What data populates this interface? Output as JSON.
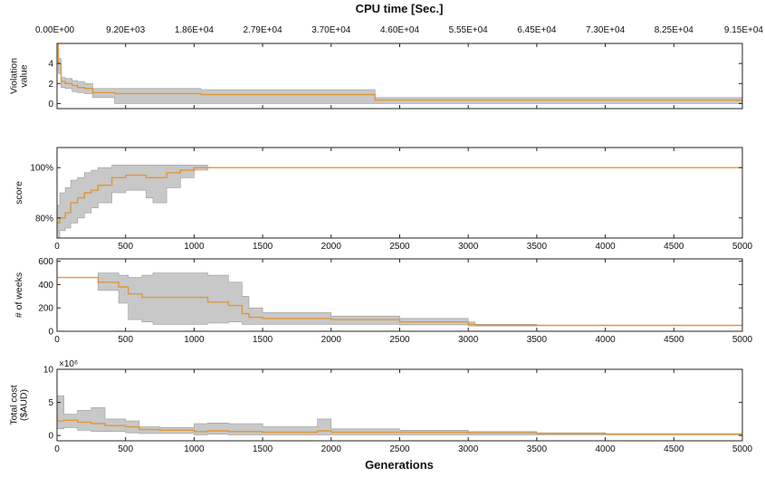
{
  "figure": {
    "top_axis_title": "CPU time [Sec.]",
    "bottom_axis_title": "Generations",
    "top_ticks": [
      "0.00E+00",
      "9.20E+03",
      "1.86E+04",
      "2.79E+04",
      "3.70E+04",
      "4.60E+04",
      "5.55E+04",
      "6.45E+04",
      "7.30E+04",
      "8.25E+04",
      "9.15E+04"
    ],
    "x_ticks": [
      "0",
      "500",
      "1000",
      "1500",
      "2000",
      "2500",
      "3000",
      "3500",
      "4000",
      "4500",
      "5000"
    ],
    "colors": {
      "line": "#e0963a",
      "band": "#c8c8c8",
      "band_edge": "#9a9a9a",
      "axis": "#222222"
    }
  },
  "chart_data": [
    {
      "type": "line",
      "ylabel": "Violation value",
      "ylabel_lines": [
        "Violation",
        "value"
      ],
      "xlim": [
        0,
        5000
      ],
      "ylim": [
        -0.5,
        6
      ],
      "yticks": [
        0,
        2,
        4
      ],
      "ytick_labels": [
        "0",
        "2",
        "4"
      ],
      "exponent_label": "",
      "x": [
        0,
        10,
        30,
        60,
        110,
        150,
        200,
        260,
        420,
        700,
        1050,
        1500,
        2000,
        2310,
        2320,
        3000,
        4000,
        5000
      ],
      "mean": [
        6.0,
        4.0,
        2.2,
        2.0,
        1.8,
        1.6,
        1.5,
        1.1,
        1.0,
        1.0,
        0.9,
        0.9,
        0.9,
        0.9,
        0.35,
        0.35,
        0.35,
        0.3
      ],
      "band_upper": [
        6.0,
        4.5,
        2.6,
        2.5,
        2.3,
        2.2,
        2.0,
        1.5,
        1.5,
        1.5,
        1.4,
        1.4,
        1.4,
        1.4,
        0.6,
        0.6,
        0.6,
        0.6
      ],
      "band_lower": [
        6.0,
        3.0,
        1.6,
        1.5,
        1.2,
        1.1,
        1.0,
        0.6,
        0.0,
        0.0,
        0.0,
        0.0,
        0.0,
        0.0,
        0.0,
        0.0,
        0.0,
        0.0
      ]
    },
    {
      "type": "line",
      "ylabel": "score",
      "ylabel_lines": [
        "score"
      ],
      "xlim": [
        0,
        5000
      ],
      "ylim": [
        0.72,
        1.08
      ],
      "yticks": [
        0.8,
        1.0
      ],
      "ytick_labels": [
        "80%",
        "100%"
      ],
      "exponent_label": "",
      "x": [
        0,
        20,
        60,
        100,
        150,
        200,
        250,
        300,
        400,
        500,
        620,
        650,
        700,
        800,
        900,
        1000,
        1100,
        2000,
        3000,
        4000,
        5000
      ],
      "mean": [
        0.78,
        0.8,
        0.82,
        0.86,
        0.88,
        0.9,
        0.91,
        0.93,
        0.96,
        0.97,
        0.97,
        0.96,
        0.96,
        0.98,
        0.99,
        1.0,
        1.0,
        1.0,
        1.0,
        1.0,
        1.0
      ],
      "band_upper": [
        0.85,
        0.9,
        0.92,
        0.95,
        0.96,
        0.98,
        0.99,
        1.0,
        1.01,
        1.01,
        1.01,
        1.01,
        1.01,
        1.01,
        1.01,
        1.01,
        1.0,
        1.0,
        1.0,
        1.0,
        1.0
      ],
      "band_lower": [
        0.72,
        0.75,
        0.76,
        0.78,
        0.8,
        0.82,
        0.84,
        0.86,
        0.9,
        0.91,
        0.91,
        0.88,
        0.86,
        0.92,
        0.96,
        0.99,
        1.0,
        1.0,
        1.0,
        1.0,
        1.0
      ]
    },
    {
      "type": "line",
      "ylabel": "# of weeks",
      "ylabel_lines": [
        "# of weeks"
      ],
      "xlim": [
        0,
        5000
      ],
      "ylim": [
        0,
        620
      ],
      "yticks": [
        0,
        200,
        400,
        600
      ],
      "ytick_labels": [
        "0",
        "200",
        "400",
        "600"
      ],
      "exponent_label": "",
      "x": [
        0,
        250,
        300,
        450,
        520,
        620,
        700,
        800,
        1000,
        1100,
        1250,
        1350,
        1400,
        1500,
        2000,
        2500,
        3000,
        3050,
        3500,
        4000,
        5000
      ],
      "mean": [
        460,
        460,
        420,
        380,
        320,
        290,
        290,
        290,
        290,
        250,
        220,
        150,
        120,
        110,
        100,
        80,
        60,
        50,
        50,
        50,
        50
      ],
      "band_upper": [
        460,
        460,
        500,
        480,
        460,
        480,
        500,
        500,
        500,
        480,
        420,
        300,
        200,
        160,
        130,
        110,
        80,
        60,
        50,
        50,
        50
      ],
      "band_lower": [
        460,
        460,
        350,
        240,
        100,
        80,
        60,
        60,
        60,
        70,
        80,
        60,
        60,
        60,
        60,
        55,
        45,
        45,
        50,
        50,
        50
      ]
    },
    {
      "type": "line",
      "ylabel": "Total cost ($AUD)",
      "ylabel_lines": [
        "Total cost",
        "($AUD)"
      ],
      "xlim": [
        0,
        5000
      ],
      "ylim": [
        -0.8,
        10
      ],
      "yticks": [
        0,
        5,
        10
      ],
      "ytick_labels": [
        "0",
        "5",
        "10"
      ],
      "exponent_label": "×10⁶",
      "x": [
        0,
        50,
        150,
        250,
        350,
        500,
        600,
        750,
        1000,
        1100,
        1250,
        1500,
        1850,
        1900,
        2000,
        2500,
        3000,
        3500,
        4000,
        5000
      ],
      "mean": [
        2.2,
        2.3,
        2.0,
        1.8,
        1.5,
        1.3,
        0.9,
        0.8,
        0.6,
        0.7,
        0.6,
        0.5,
        0.5,
        0.7,
        0.5,
        0.5,
        0.4,
        0.3,
        0.2,
        0.1
      ],
      "band_upper": [
        6.0,
        3.2,
        3.8,
        4.2,
        2.5,
        2.2,
        1.3,
        1.2,
        1.8,
        1.9,
        1.8,
        1.3,
        1.3,
        2.5,
        1.0,
        0.8,
        0.6,
        0.4,
        0.3,
        0.2
      ],
      "band_lower": [
        1.0,
        1.2,
        0.8,
        0.6,
        0.6,
        0.4,
        0.3,
        0.3,
        0.1,
        0.2,
        0.1,
        0.1,
        0.1,
        0.1,
        0.1,
        0.1,
        0.1,
        0.1,
        0.1,
        0.0
      ]
    }
  ]
}
